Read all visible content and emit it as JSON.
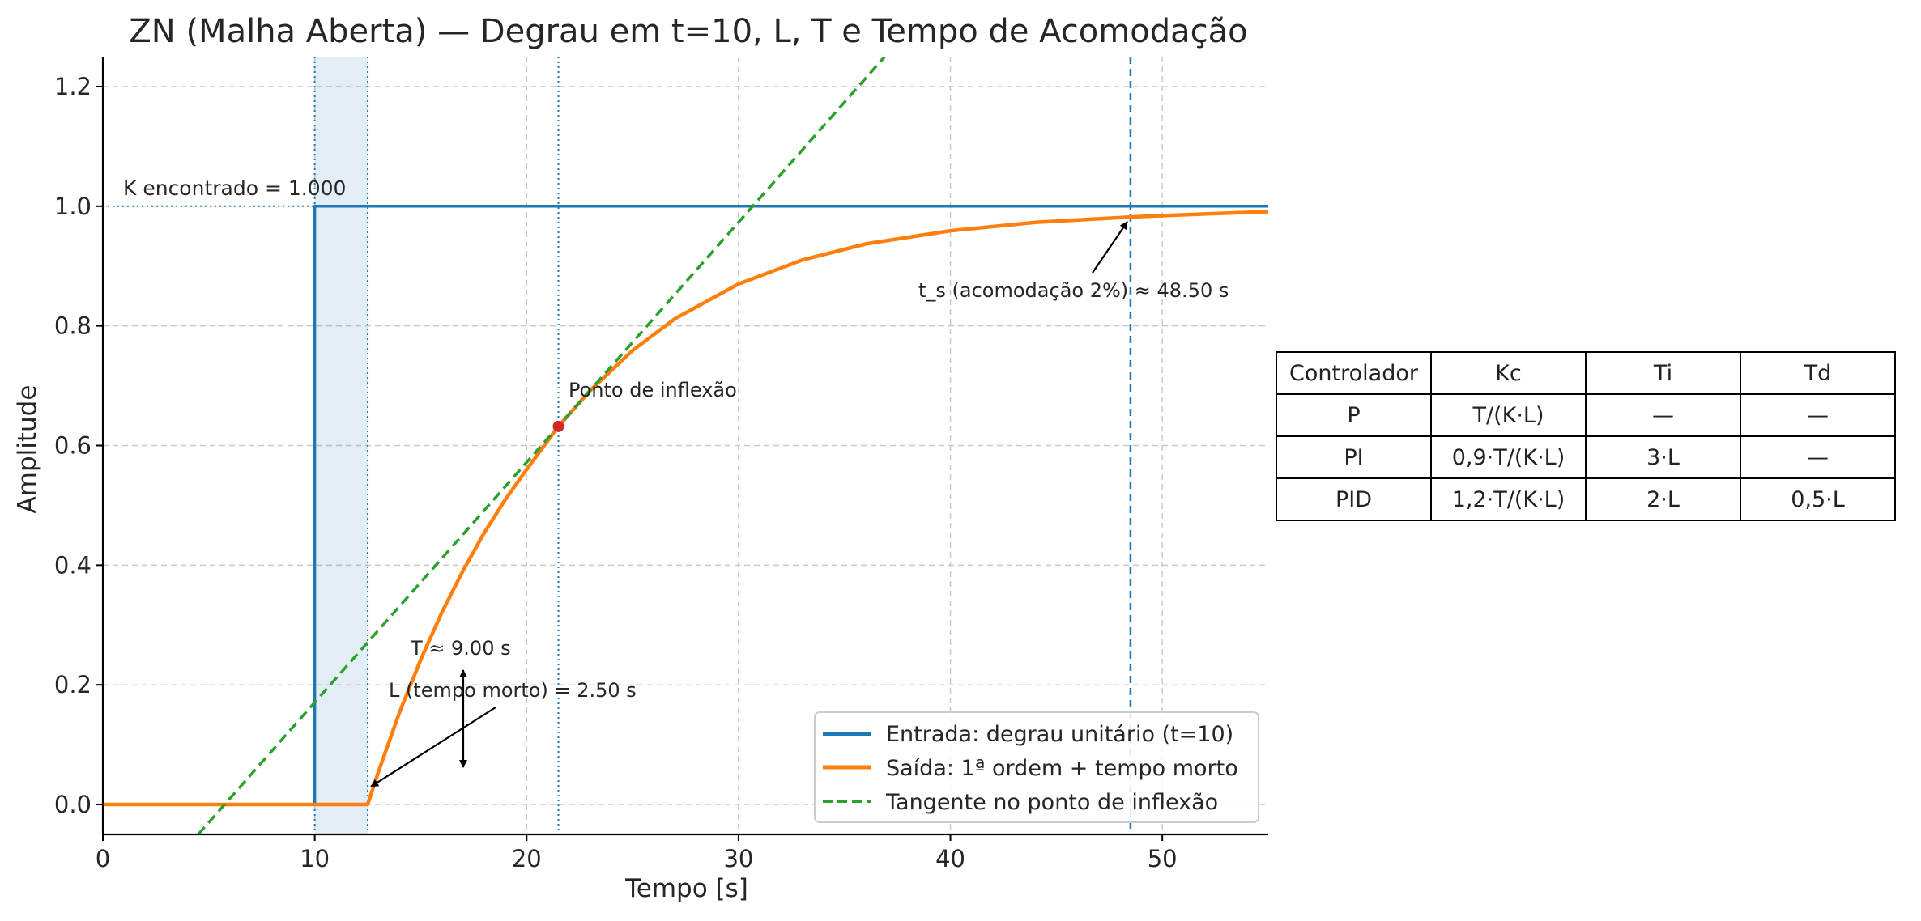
{
  "chart_data": {
    "type": "line",
    "title": "ZN (Malha Aberta) — Degrau em t=10, L, T e Tempo de Acomodação",
    "xlabel": "Tempo [s]",
    "ylabel": "Amplitude",
    "xlim": [
      0,
      55
    ],
    "ylim": [
      -0.05,
      1.25
    ],
    "xticks": [
      0,
      10,
      20,
      30,
      40,
      50
    ],
    "yticks": [
      0.0,
      0.2,
      0.4,
      0.6,
      0.8,
      1.0,
      1.2
    ],
    "grid": true,
    "legend_position": "lower-right",
    "parameters": {
      "step_time": 10,
      "K": 1.0,
      "L": 2.5,
      "T": 9.0,
      "t_inflection": 21.5,
      "y_inflection": 0.632,
      "t_settling": 48.5
    },
    "series": [
      {
        "name": "Entrada: degrau unitário (t=10)",
        "color": "#1f77b4",
        "style": "solid",
        "x": [
          0,
          10,
          10,
          55
        ],
        "y": [
          0,
          0,
          1,
          1
        ]
      },
      {
        "name": "Saída: 1ª ordem + tempo morto",
        "color": "#ff7f0e",
        "style": "solid",
        "x": [
          0,
          12.5,
          13,
          14,
          15,
          16,
          17,
          18,
          19,
          20,
          21.5,
          23,
          25,
          27,
          30,
          33,
          36,
          40,
          44,
          48.5,
          52,
          55
        ],
        "y": [
          0,
          0,
          0.054,
          0.154,
          0.242,
          0.321,
          0.391,
          0.454,
          0.51,
          0.56,
          0.632,
          0.692,
          0.759,
          0.812,
          0.87,
          0.91,
          0.937,
          0.959,
          0.973,
          0.982,
          0.987,
          0.991
        ]
      },
      {
        "name": "Tangente no ponto de inflexão",
        "color": "#2ca02c",
        "style": "dashed",
        "x": [
          4.5,
          36.9
        ],
        "y": [
          -0.05,
          1.25
        ]
      }
    ],
    "annotations": {
      "k_found": "K encontrado = 1.000",
      "settling": "t_s (acomodação 2%) ≈ 48.50 s",
      "inflection": "Ponto de inflexão",
      "T_label": "T ≈ 9.00 s",
      "L_label": "L (tempo morto) = 2.50 s"
    }
  },
  "table": {
    "header": [
      "Controlador",
      "Kc",
      "Ti",
      "Td"
    ],
    "rows": [
      [
        "P",
        "T/(K·L)",
        "—",
        "—"
      ],
      [
        "PI",
        "0,9·T/(K·L)",
        "3·L",
        "—"
      ],
      [
        "PID",
        "1,2·T/(K·L)",
        "2·L",
        "0,5·L"
      ]
    ]
  }
}
